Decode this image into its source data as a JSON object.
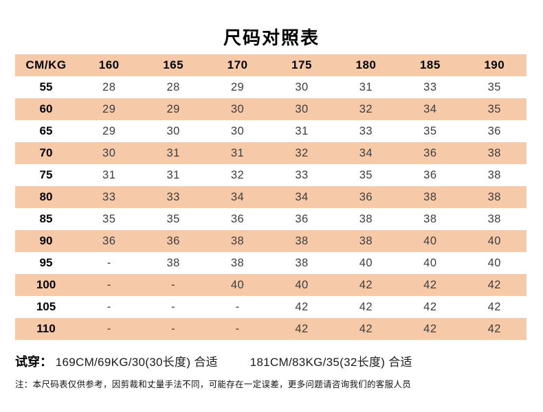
{
  "title": "尺码对照表",
  "colors": {
    "stripe": "#F6C9A8",
    "header_text": "#000000",
    "value_text": "#3d3d3d",
    "background": "#ffffff"
  },
  "table": {
    "header": [
      "CM/KG",
      "160",
      "165",
      "170",
      "175",
      "180",
      "185",
      "190"
    ],
    "rows": [
      {
        "label": "55",
        "values": [
          "28",
          "28",
          "29",
          "30",
          "31",
          "33",
          "35"
        ]
      },
      {
        "label": "60",
        "values": [
          "29",
          "29",
          "30",
          "30",
          "32",
          "34",
          "35"
        ]
      },
      {
        "label": "65",
        "values": [
          "29",
          "30",
          "30",
          "31",
          "33",
          "35",
          "36"
        ]
      },
      {
        "label": "70",
        "values": [
          "30",
          "31",
          "31",
          "32",
          "34",
          "36",
          "38"
        ]
      },
      {
        "label": "75",
        "values": [
          "31",
          "31",
          "32",
          "33",
          "35",
          "36",
          "38"
        ]
      },
      {
        "label": "80",
        "values": [
          "33",
          "33",
          "34",
          "34",
          "36",
          "38",
          "38"
        ]
      },
      {
        "label": "85",
        "values": [
          "35",
          "35",
          "36",
          "36",
          "38",
          "38",
          "38"
        ]
      },
      {
        "label": "90",
        "values": [
          "36",
          "36",
          "38",
          "38",
          "38",
          "40",
          "40"
        ]
      },
      {
        "label": "95",
        "values": [
          "-",
          "38",
          "38",
          "38",
          "40",
          "40",
          "40"
        ]
      },
      {
        "label": "100",
        "values": [
          "-",
          "-",
          "40",
          "40",
          "42",
          "42",
          "42"
        ]
      },
      {
        "label": "105",
        "values": [
          "-",
          "-",
          "-",
          "42",
          "42",
          "42",
          "42"
        ]
      },
      {
        "label": "110",
        "values": [
          "-",
          "-",
          "-",
          "42",
          "42",
          "42",
          "42"
        ]
      }
    ]
  },
  "fit_note": {
    "label": "试穿：",
    "items": [
      "169CM/69KG/30(30长度)  合适",
      "181CM/83KG/35(32长度)  合适"
    ]
  },
  "disclaimer": "注：本尺码表仅供参考，因剪裁和丈量手法不同，可能存在一定误差，更多问题请咨询我们的客服人员"
}
